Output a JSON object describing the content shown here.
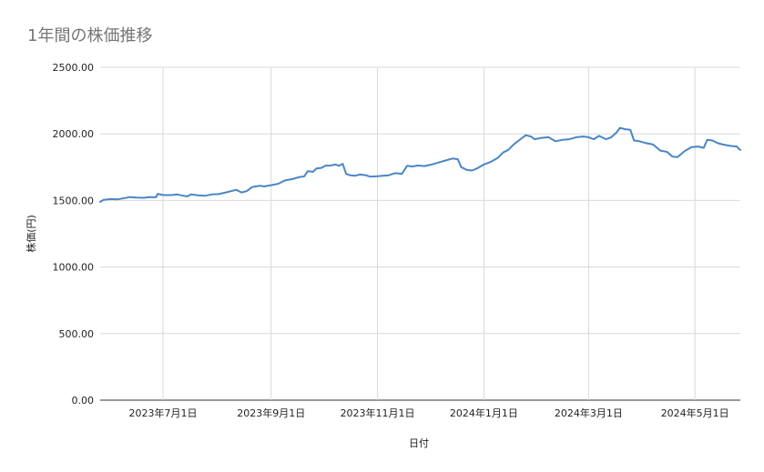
{
  "chart_data": {
    "type": "line",
    "title": "1年間の株価推移",
    "xlabel": "日付",
    "ylabel": "株価(円)",
    "ylim": [
      0,
      2500
    ],
    "y_ticks": [
      "0.00",
      "500.00",
      "1000.00",
      "1500.00",
      "2000.00",
      "2500.00"
    ],
    "xlim": [
      "2023-05-26",
      "2024-05-27"
    ],
    "x_ticks": [
      {
        "date": "2023-07-01",
        "label": "2023年7月1日"
      },
      {
        "date": "2023-09-01",
        "label": "2023年9月1日"
      },
      {
        "date": "2023-11-01",
        "label": "2023年11月1日"
      },
      {
        "date": "2024-01-01",
        "label": "2024年1月1日"
      },
      {
        "date": "2024-03-01",
        "label": "2024年3月1日"
      },
      {
        "date": "2024-05-01",
        "label": "2024年5月1日"
      }
    ],
    "grid": true,
    "legend": "none",
    "line_color": "#4a86c5",
    "series": [
      {
        "points": [
          [
            "2023-05-26",
            1490
          ],
          [
            "2023-05-28",
            1505
          ],
          [
            "2023-06-01",
            1510
          ],
          [
            "2023-06-05",
            1508
          ],
          [
            "2023-06-08",
            1515
          ],
          [
            "2023-06-12",
            1525
          ],
          [
            "2023-06-16",
            1522
          ],
          [
            "2023-06-20",
            1520
          ],
          [
            "2023-06-23",
            1525
          ],
          [
            "2023-06-27",
            1524
          ],
          [
            "2023-06-28",
            1550
          ],
          [
            "2023-07-01",
            1540
          ],
          [
            "2023-07-06",
            1540
          ],
          [
            "2023-07-09",
            1545
          ],
          [
            "2023-07-13",
            1535
          ],
          [
            "2023-07-15",
            1530
          ],
          [
            "2023-07-17",
            1545
          ],
          [
            "2023-07-21",
            1538
          ],
          [
            "2023-07-25",
            1535
          ],
          [
            "2023-07-29",
            1545
          ],
          [
            "2023-08-02",
            1548
          ],
          [
            "2023-08-06",
            1560
          ],
          [
            "2023-08-09",
            1570
          ],
          [
            "2023-08-12",
            1580
          ],
          [
            "2023-08-15",
            1560
          ],
          [
            "2023-08-18",
            1570
          ],
          [
            "2023-08-21",
            1600
          ],
          [
            "2023-08-23",
            1605
          ],
          [
            "2023-08-26",
            1610
          ],
          [
            "2023-08-28",
            1605
          ],
          [
            "2023-09-01",
            1615
          ],
          [
            "2023-09-05",
            1625
          ],
          [
            "2023-09-09",
            1650
          ],
          [
            "2023-09-13",
            1660
          ],
          [
            "2023-09-17",
            1675
          ],
          [
            "2023-09-20",
            1680
          ],
          [
            "2023-09-22",
            1720
          ],
          [
            "2023-09-25",
            1715
          ],
          [
            "2023-09-27",
            1740
          ],
          [
            "2023-09-30",
            1745
          ],
          [
            "2023-10-02",
            1760
          ],
          [
            "2023-10-05",
            1762
          ],
          [
            "2023-10-08",
            1770
          ],
          [
            "2023-10-10",
            1760
          ],
          [
            "2023-10-12",
            1775
          ],
          [
            "2023-10-14",
            1700
          ],
          [
            "2023-10-16",
            1690
          ],
          [
            "2023-10-19",
            1685
          ],
          [
            "2023-10-22",
            1695
          ],
          [
            "2023-10-25",
            1690
          ],
          [
            "2023-10-28",
            1678
          ],
          [
            "2023-11-01",
            1682
          ],
          [
            "2023-11-04",
            1685
          ],
          [
            "2023-11-07",
            1688
          ],
          [
            "2023-11-11",
            1705
          ],
          [
            "2023-11-15",
            1700
          ],
          [
            "2023-11-18",
            1760
          ],
          [
            "2023-11-21",
            1755
          ],
          [
            "2023-11-24",
            1762
          ],
          [
            "2023-11-28",
            1758
          ],
          [
            "2023-12-02",
            1770
          ],
          [
            "2023-12-06",
            1785
          ],
          [
            "2023-12-10",
            1800
          ],
          [
            "2023-12-14",
            1815
          ],
          [
            "2023-12-17",
            1810
          ],
          [
            "2023-12-19",
            1750
          ],
          [
            "2023-12-22",
            1730
          ],
          [
            "2023-12-25",
            1725
          ],
          [
            "2023-12-28",
            1740
          ],
          [
            "2024-01-01",
            1770
          ],
          [
            "2024-01-05",
            1790
          ],
          [
            "2024-01-09",
            1820
          ],
          [
            "2024-01-12",
            1860
          ],
          [
            "2024-01-15",
            1880
          ],
          [
            "2024-01-18",
            1920
          ],
          [
            "2024-01-21",
            1950
          ],
          [
            "2024-01-25",
            1990
          ],
          [
            "2024-01-28",
            1980
          ],
          [
            "2024-01-30",
            1960
          ],
          [
            "2024-02-03",
            1970
          ],
          [
            "2024-02-07",
            1975
          ],
          [
            "2024-02-11",
            1945
          ],
          [
            "2024-02-15",
            1955
          ],
          [
            "2024-02-19",
            1960
          ],
          [
            "2024-02-23",
            1975
          ],
          [
            "2024-02-27",
            1980
          ],
          [
            "2024-03-01",
            1975
          ],
          [
            "2024-03-04",
            1960
          ],
          [
            "2024-03-07",
            1985
          ],
          [
            "2024-03-11",
            1960
          ],
          [
            "2024-03-14",
            1975
          ],
          [
            "2024-03-17",
            2010
          ],
          [
            "2024-03-19",
            2045
          ],
          [
            "2024-03-22",
            2035
          ],
          [
            "2024-03-25",
            2030
          ],
          [
            "2024-03-27",
            1950
          ],
          [
            "2024-03-30",
            1945
          ],
          [
            "2024-04-03",
            1930
          ],
          [
            "2024-04-07",
            1920
          ],
          [
            "2024-04-11",
            1875
          ],
          [
            "2024-04-15",
            1865
          ],
          [
            "2024-04-18",
            1830
          ],
          [
            "2024-04-21",
            1825
          ],
          [
            "2024-04-25",
            1870
          ],
          [
            "2024-04-29",
            1900
          ],
          [
            "2024-05-03",
            1905
          ],
          [
            "2024-05-06",
            1895
          ],
          [
            "2024-05-08",
            1955
          ],
          [
            "2024-05-11",
            1950
          ],
          [
            "2024-05-14",
            1930
          ],
          [
            "2024-05-17",
            1920
          ],
          [
            "2024-05-21",
            1910
          ],
          [
            "2024-05-25",
            1905
          ],
          [
            "2024-05-26",
            1890
          ],
          [
            "2024-05-27",
            1880
          ]
        ]
      }
    ]
  }
}
